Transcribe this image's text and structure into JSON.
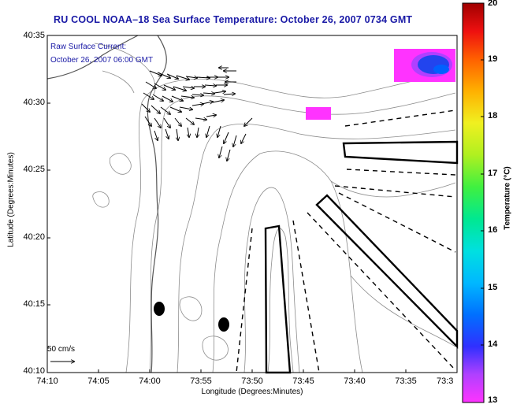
{
  "title": "RU COOL  NOAA–18  Sea Surface Temperature:  October 26, 2007 0734 GMT",
  "current_label": {
    "line1": "Raw Surface Current:",
    "line2": "October 26, 2007 06:00 GMT"
  },
  "axes": {
    "xlabel": "Longitude (Degrees:Minutes)",
    "ylabel": "Latitude (Degrees:Minutes)",
    "x_ticks": [
      "74:10",
      "74:05",
      "74:00",
      "73:55",
      "73:50",
      "73:45",
      "73:40",
      "73:35",
      "73:3"
    ],
    "y_ticks": [
      "40:35",
      "40:30",
      "40:25",
      "40:20",
      "40:15",
      "40:10"
    ]
  },
  "colorbar": {
    "label": "Temperature (°C)",
    "ticks": [
      "20",
      "19",
      "18",
      "17",
      "16",
      "15",
      "14",
      "13"
    ],
    "min": 13,
    "max": 20
  },
  "scale": {
    "label": "50 cm/s"
  },
  "colors": {
    "title": "#1a1aa6",
    "frame": "#000000",
    "contour": "#8c8c8c",
    "warm_patch": "#ff33ff",
    "cool_patch": "#2244ee"
  }
}
